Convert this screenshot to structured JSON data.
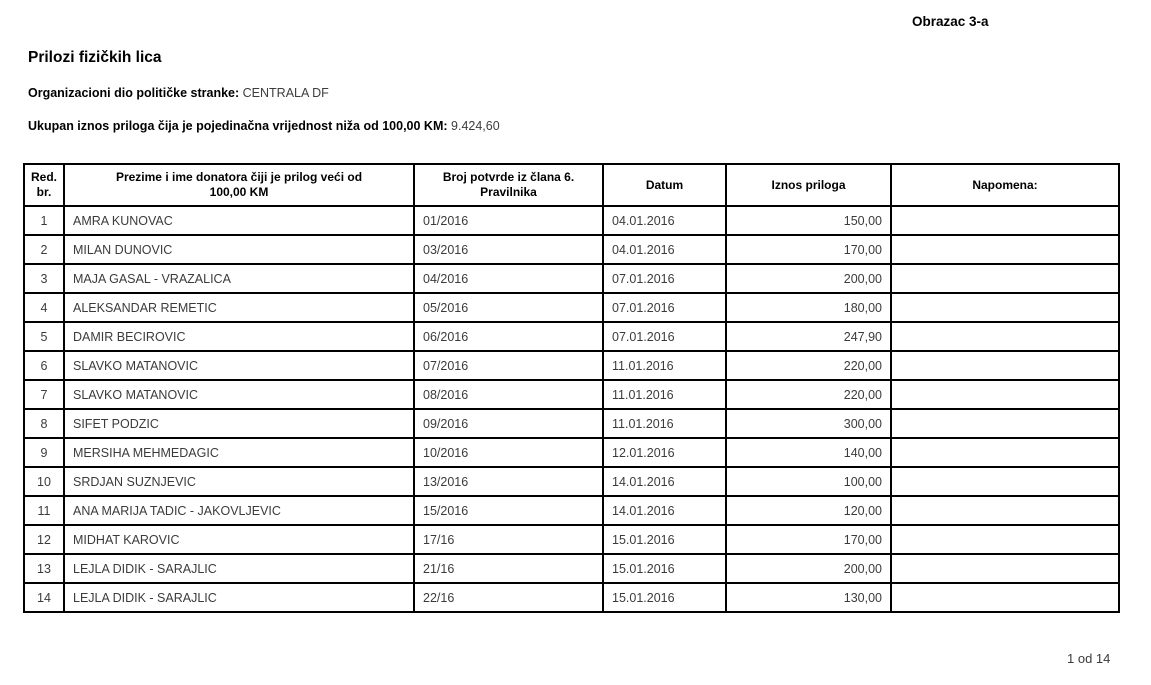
{
  "page": {
    "form_code": "Obrazac 3-a",
    "title": "Prilozi fizičkih lica",
    "org_label": "Organizacioni dio političke stranke:",
    "org_value": "CENTRALA DF",
    "total_label": "Ukupan iznos priloga čija je pojedinačna vrijednost niža od 100,00 KM:",
    "total_value": "9.424,60",
    "page_indicator": "1 od 14"
  },
  "table": {
    "headers": [
      "Red.\nbr.",
      "Prezime i ime donatora čiji je prilog veći od\n100,00 KM",
      "Broj potvrde iz člana 6.\nPravilnika",
      "Datum",
      "Iznos priloga",
      "Napomena:"
    ],
    "rows": [
      {
        "num": "1",
        "name": "AMRA  KUNOVAC",
        "receipt": "01/2016",
        "date": "04.01.2016",
        "amount": "150,00",
        "note": ""
      },
      {
        "num": "2",
        "name": "MILAN DUNOVIC",
        "receipt": "03/2016",
        "date": "04.01.2016",
        "amount": "170,00",
        "note": ""
      },
      {
        "num": "3",
        "name": "MAJA GASAL - VRAZALICA",
        "receipt": "04/2016",
        "date": "07.01.2016",
        "amount": "200,00",
        "note": ""
      },
      {
        "num": "4",
        "name": "ALEKSANDAR REMETIC",
        "receipt": "05/2016",
        "date": "07.01.2016",
        "amount": "180,00",
        "note": ""
      },
      {
        "num": "5",
        "name": "DAMIR BECIROVIC",
        "receipt": "06/2016",
        "date": "07.01.2016",
        "amount": "247,90",
        "note": ""
      },
      {
        "num": "6",
        "name": "SLAVKO MATANOVIC",
        "receipt": "07/2016",
        "date": "11.01.2016",
        "amount": "220,00",
        "note": ""
      },
      {
        "num": "7",
        "name": "SLAVKO MATANOVIC",
        "receipt": "08/2016",
        "date": "11.01.2016",
        "amount": "220,00",
        "note": ""
      },
      {
        "num": "8",
        "name": "SIFET PODZIC",
        "receipt": "09/2016",
        "date": "11.01.2016",
        "amount": "300,00",
        "note": ""
      },
      {
        "num": "9",
        "name": "MERSIHA MEHMEDAGIC",
        "receipt": "10/2016",
        "date": "12.01.2016",
        "amount": "140,00",
        "note": ""
      },
      {
        "num": "10",
        "name": "SRDJAN SUZNJEVIC",
        "receipt": "13/2016",
        "date": "14.01.2016",
        "amount": "100,00",
        "note": ""
      },
      {
        "num": "11",
        "name": "ANA MARIJA TADIC - JAKOVLJEVIC",
        "receipt": "15/2016",
        "date": "14.01.2016",
        "amount": "120,00",
        "note": ""
      },
      {
        "num": "12",
        "name": "MIDHAT KAROVIC",
        "receipt": "17/16",
        "date": "15.01.2016",
        "amount": "170,00",
        "note": ""
      },
      {
        "num": "13",
        "name": "LEJLA DIDIK - SARAJLIC",
        "receipt": "21/16",
        "date": "15.01.2016",
        "amount": "200,00",
        "note": ""
      },
      {
        "num": "14",
        "name": "LEJLA DIDIK - SARAJLIC",
        "receipt": "22/16",
        "date": "15.01.2016",
        "amount": "130,00",
        "note": ""
      }
    ]
  }
}
